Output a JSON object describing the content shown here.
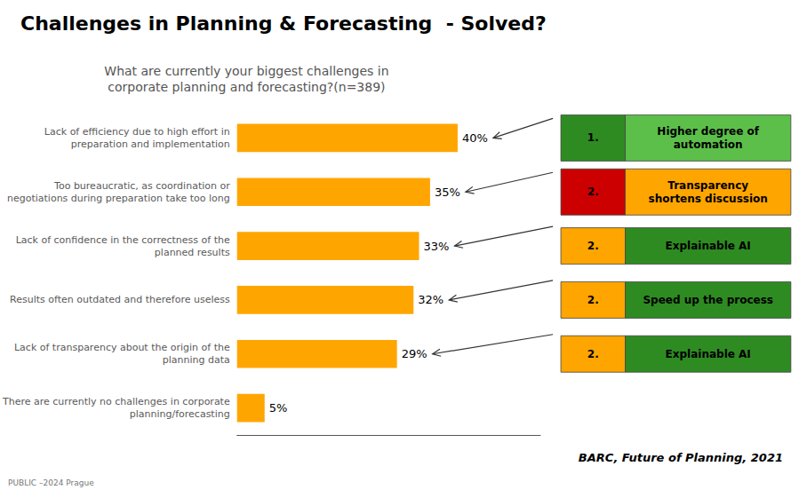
{
  "chart_data": {
    "type": "bar",
    "orientation": "horizontal",
    "title": "Challenges in Planning & Forecasting  - Solved?",
    "subtitle": "What are currently your biggest challenges in\ncorporate planning and forecasting?(n=389)",
    "source": "BARC, Future of Planning, 2021",
    "footnote": "PUBLIC –2024 Prague",
    "categories": [
      "Lack of efficiency due to high effort in\npreparation and implementation",
      "Too bureaucratic, as coordination or\nnegotiations during preparation take too long",
      "Lack of confidence in the correctness of the\nplanned results",
      "Results often outdated and therefore useless",
      "Lack of transparency about the origin of the\nplanning data",
      "There are currently no challenges in corporate\nplanning/forecasting"
    ],
    "values": [
      40,
      35,
      33,
      32,
      29,
      5
    ],
    "value_labels": [
      "40%",
      "35%",
      "33%",
      "32%",
      "29%",
      "5%"
    ],
    "data_labels": true,
    "color": "#FFA500",
    "xlim": [
      0,
      55
    ],
    "tick_labels": "y",
    "grid": false,
    "annotations": [
      {
        "category": "Lack of efficiency due to high effort in\npreparation and implementation",
        "label": "1.",
        "text": "Higher degree of\nautomation",
        "colors": [
          "#2E8B22",
          "#5CBF4A"
        ]
      },
      {
        "category": "Too bureaucratic, as coordination or\nnegotiations during preparation take too long",
        "label": "2.",
        "text": "Transparency\nshortens discussion",
        "colors": [
          "#CC0000",
          "#FFA500"
        ]
      },
      {
        "category": "Lack of confidence in the correctness of the\nplanned results",
        "label": "2.",
        "text": "Explainable AI",
        "colors": [
          "#FFA500",
          "#2E8B22"
        ]
      },
      {
        "category": "Results often outdated and therefore useless",
        "label": "2.",
        "text": "Speed up the process",
        "colors": [
          "#FFA500",
          "#2E8B22"
        ]
      },
      {
        "category": "Lack of transparency about the origin of the\nplanning data",
        "label": "2.",
        "text": "Explainable AI",
        "colors": [
          "#FFA500",
          "#2E8B22"
        ]
      }
    ]
  }
}
